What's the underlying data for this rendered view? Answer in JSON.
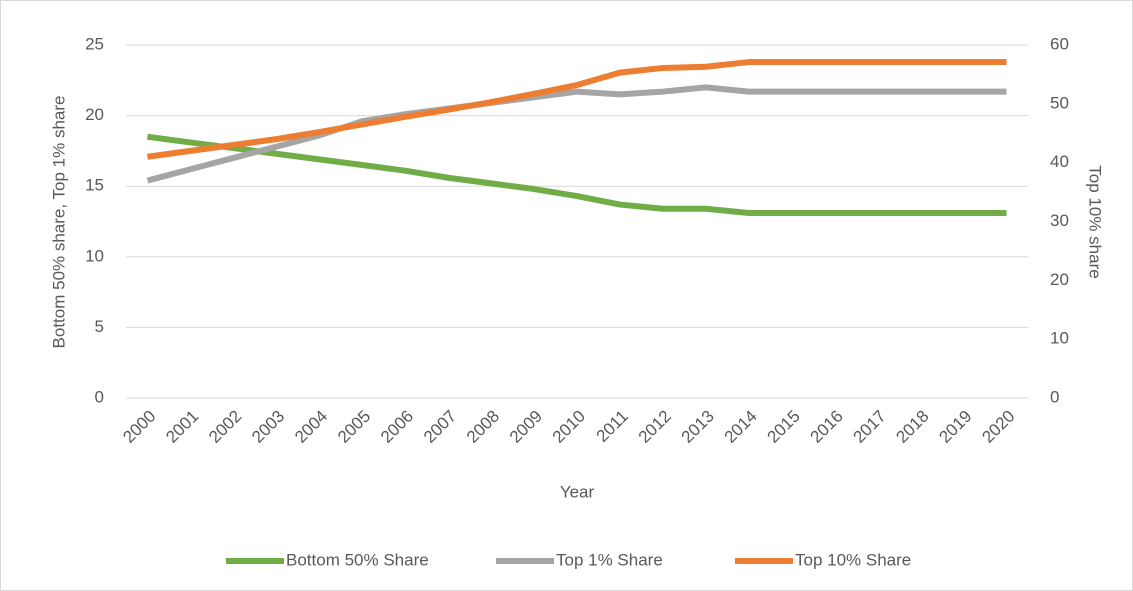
{
  "chart_data": {
    "type": "line",
    "x_label": "Year",
    "y_label": "Bottom 50% share, Top 1% share",
    "y2_label": "Top 10% share",
    "categories": [
      "2000",
      "2001",
      "2002",
      "2003",
      "2004",
      "2005",
      "2006",
      "2007",
      "2008",
      "2009",
      "2010",
      "2011",
      "2012",
      "2013",
      "2014",
      "2015",
      "2016",
      "2017",
      "2018",
      "2019",
      "2020"
    ],
    "series": [
      {
        "name": "Bottom 50% Share",
        "color": "#70ad47",
        "values": [
          18.5,
          18.1,
          17.7,
          17.3,
          16.9,
          16.5,
          16.1,
          15.6,
          15.2,
          14.8,
          14.3,
          13.7,
          13.4,
          13.4,
          13.1,
          13.1,
          13.1,
          13.1,
          13.1,
          13.1,
          13.1
        ]
      },
      {
        "name": "Top 1% Share",
        "color": "#a5a5a5",
        "values": [
          15.4,
          16.2,
          17.0,
          17.8,
          18.6,
          19.6,
          20.1,
          20.5,
          20.9,
          21.3,
          21.7,
          21.5,
          21.7,
          22.0,
          21.7,
          21.7,
          21.7,
          21.7,
          21.7,
          21.7,
          21.7
        ]
      },
      {
        "name": "Top 10% Share",
        "color": "#ed7d31",
        "axis": "y2",
        "values": [
          41.0,
          42.0,
          43.0,
          44.0,
          45.2,
          46.5,
          47.8,
          49.0,
          50.3,
          51.7,
          53.2,
          55.3,
          56.1,
          56.3,
          57.1,
          57.1,
          57.1,
          57.1,
          57.1,
          57.1,
          57.1
        ]
      }
    ],
    "ylim": [
      0,
      25
    ],
    "yticks": [
      0,
      5,
      10,
      15,
      20,
      25
    ],
    "y2lim": [
      0,
      60
    ],
    "y2ticks": [
      0,
      10,
      20,
      30,
      40,
      50,
      60
    ],
    "grid": true,
    "legend": "bottom"
  }
}
